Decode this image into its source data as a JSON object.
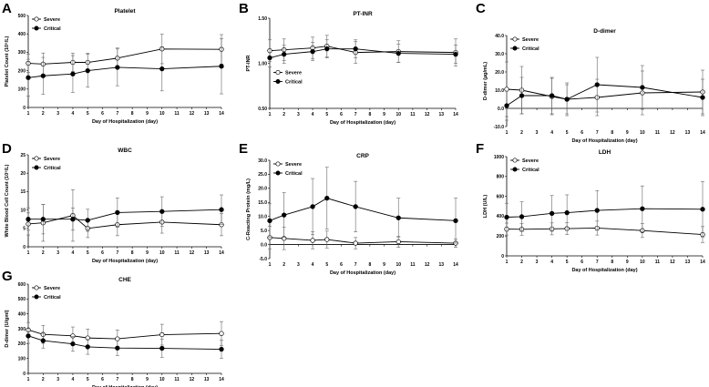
{
  "chart_data": [
    {
      "type": "line",
      "letter": "A",
      "title": "Platelet",
      "ylabel": "Platelet Count (10⁹/L)",
      "xlabel": "Day of Hospitalization (day)",
      "ylim": [
        0,
        500
      ],
      "yticks": [
        0,
        100,
        200,
        300,
        400,
        500
      ],
      "ytick_labels": [
        "0",
        "100",
        "200",
        "300",
        "400",
        "500"
      ],
      "xlim": [
        1,
        14
      ],
      "xticks": [
        1,
        2,
        3,
        4,
        5,
        6,
        7,
        8,
        9,
        10,
        11,
        12,
        13,
        14
      ],
      "xtick_labels": [
        "1",
        "2",
        "3",
        "4",
        "5",
        "6",
        "7",
        "8",
        "9",
        "10",
        "11",
        "12",
        "13",
        "14"
      ],
      "legend": "top-left",
      "series": [
        {
          "name": "Severe",
          "marker": "open",
          "x": [
            1,
            2,
            4,
            5,
            7,
            10,
            14
          ],
          "values": [
            240,
            236,
            245,
            245,
            268,
            318,
            316
          ],
          "err": [
            50,
            60,
            50,
            50,
            55,
            80,
            80
          ]
        },
        {
          "name": "Critical",
          "marker": "filled",
          "x": [
            1,
            2,
            4,
            5,
            7,
            10,
            14
          ],
          "values": [
            162,
            172,
            182,
            200,
            218,
            210,
            224
          ],
          "err": [
            100,
            100,
            100,
            90,
            100,
            120,
            150
          ]
        }
      ]
    },
    {
      "type": "line",
      "letter": "B",
      "title": "PT-INR",
      "ylabel": "PT-INR",
      "xlabel": "Day of Hospitalization (day)",
      "ylim": [
        0.5,
        1.5
      ],
      "yticks": [
        0.5,
        1.0,
        1.5
      ],
      "ytick_labels": [
        "0.50",
        "1.00",
        "1.50"
      ],
      "xlim": [
        1,
        14
      ],
      "xticks": [
        1,
        2,
        3,
        4,
        5,
        6,
        7,
        8,
        9,
        10,
        11,
        12,
        13,
        14
      ],
      "xtick_labels": [
        "1",
        "2",
        "3",
        "4",
        "5",
        "6",
        "7",
        "8",
        "9",
        "10",
        "11",
        "12",
        "13",
        "14"
      ],
      "legend": "middle-left",
      "series": [
        {
          "name": "Severe",
          "marker": "open",
          "x": [
            1,
            2,
            4,
            5,
            7,
            10,
            14
          ],
          "values": [
            1.14,
            1.15,
            1.17,
            1.19,
            1.12,
            1.13,
            1.12
          ],
          "err": [
            0.12,
            0.12,
            0.12,
            0.12,
            0.12,
            0.12,
            0.15
          ]
        },
        {
          "name": "Critical",
          "marker": "filled",
          "x": [
            1,
            2,
            4,
            5,
            7,
            10,
            14
          ],
          "values": [
            1.06,
            1.1,
            1.13,
            1.16,
            1.16,
            1.11,
            1.1
          ],
          "err": [
            0.1,
            0.1,
            0.1,
            0.1,
            0.1,
            0.1,
            0.1
          ]
        }
      ]
    },
    {
      "type": "line",
      "letter": "C",
      "title": "D-dimer",
      "ylabel": "D-dimer (µg/mL)",
      "xlabel": "Day of Hospitalization (day)",
      "ylim": [
        -10,
        40
      ],
      "yticks": [
        -10,
        0,
        10,
        20,
        30,
        40
      ],
      "ytick_labels": [
        "-10.0",
        "0.0",
        "10.0",
        "20.0",
        "30.0",
        "40.0"
      ],
      "xlim": [
        1,
        14
      ],
      "xticks": [
        1,
        2,
        3,
        4,
        5,
        6,
        7,
        8,
        9,
        10,
        11,
        12,
        13,
        14
      ],
      "xtick_labels": [
        "1",
        "2",
        "3",
        "4",
        "5",
        "6",
        "7",
        "8",
        "9",
        "10",
        "11",
        "12",
        "13",
        "14"
      ],
      "legend": "top-left",
      "series": [
        {
          "name": "Severe",
          "marker": "open",
          "x": [
            1,
            2,
            4,
            5,
            7,
            10,
            14
          ],
          "values": [
            10.5,
            10,
            6.5,
            5,
            6,
            8.5,
            9
          ],
          "err": [
            15,
            13,
            10,
            9,
            10,
            12,
            12
          ]
        },
        {
          "name": "Critical",
          "marker": "filled",
          "x": [
            1,
            2,
            4,
            5,
            7,
            10,
            14
          ],
          "values": [
            1.5,
            7,
            7,
            5,
            13,
            11.5,
            6
          ],
          "err": [
            8,
            10,
            10,
            8,
            15,
            12,
            10
          ]
        }
      ]
    },
    {
      "type": "line",
      "letter": "D",
      "title": "WBC",
      "ylabel": "White Blood Cell Count (10⁹/L)",
      "xlabel": "Day of Hospitalization (day)",
      "ylim": [
        0,
        25
      ],
      "yticks": [
        0,
        5,
        10,
        15,
        20,
        25
      ],
      "ytick_labels": [
        "0",
        "5",
        "10",
        "15",
        "20",
        "25"
      ],
      "xlim": [
        1,
        14
      ],
      "xticks": [
        1,
        2,
        3,
        4,
        5,
        6,
        7,
        8,
        9,
        10,
        11,
        12,
        13,
        14
      ],
      "xtick_labels": [
        "1",
        "2",
        "3",
        "4",
        "5",
        "6",
        "7",
        "8",
        "9",
        "10",
        "11",
        "12",
        "13",
        "14"
      ],
      "legend": "top-left",
      "series": [
        {
          "name": "Severe",
          "marker": "open",
          "x": [
            1,
            2,
            4,
            5,
            7,
            10,
            14
          ],
          "values": [
            6.2,
            6.5,
            8.5,
            5,
            6,
            6.7,
            6
          ],
          "err": [
            3,
            5,
            7,
            2.5,
            3,
            3,
            3
          ]
        },
        {
          "name": "Critical",
          "marker": "filled",
          "x": [
            1,
            2,
            4,
            5,
            7,
            10,
            14
          ],
          "values": [
            7.5,
            7.5,
            7.5,
            7.2,
            9.3,
            9.6,
            10.1
          ],
          "err": [
            3,
            4,
            3,
            3,
            4,
            4,
            4
          ]
        }
      ]
    },
    {
      "type": "line",
      "letter": "E",
      "title": "CRP",
      "ylabel": "C-Reacting Protein (mg/L)",
      "xlabel": "Day of Hospitalization (day)",
      "ylim": [
        -5,
        30
      ],
      "yticks": [
        -5,
        0,
        5,
        10,
        15,
        20,
        25,
        30
      ],
      "ytick_labels": [
        "-5.0",
        "0.0",
        "5.0",
        "10.0",
        "15.0",
        "20.0",
        "25.0",
        "30.0"
      ],
      "xlim": [
        1,
        14
      ],
      "xticks": [
        1,
        2,
        3,
        4,
        5,
        6,
        7,
        8,
        9,
        10,
        11,
        12,
        13,
        14
      ],
      "xtick_labels": [
        "1",
        "2",
        "3",
        "4",
        "5",
        "6",
        "7",
        "8",
        "9",
        "10",
        "11",
        "12",
        "13",
        "14"
      ],
      "legend": "top-left",
      "series": [
        {
          "name": "Severe",
          "marker": "open",
          "x": [
            1,
            2,
            4,
            5,
            7,
            10,
            14
          ],
          "values": [
            2.5,
            2.2,
            1.5,
            1.8,
            0.5,
            1,
            0.5
          ],
          "err": [
            4,
            4,
            3,
            3,
            2,
            2,
            1.5
          ]
        },
        {
          "name": "Critical",
          "marker": "filled",
          "x": [
            1,
            2,
            4,
            5,
            7,
            10,
            14
          ],
          "values": [
            8.5,
            10.5,
            13.5,
            16.5,
            13.5,
            9.5,
            8.5
          ],
          "err": [
            6,
            8,
            10,
            11,
            9,
            7,
            8
          ]
        }
      ]
    },
    {
      "type": "line",
      "letter": "F",
      "title": "LDH",
      "ylabel": "LDH (U/L)",
      "xlabel": "Day of Hospitalization (day)",
      "ylim": [
        0,
        1000
      ],
      "yticks": [
        0,
        200,
        400,
        600,
        800,
        1000
      ],
      "ytick_labels": [
        "0",
        "200",
        "400",
        "600",
        "800",
        "1000"
      ],
      "xlim": [
        1,
        14
      ],
      "xticks": [
        1,
        2,
        3,
        4,
        5,
        6,
        7,
        8,
        9,
        10,
        11,
        12,
        13,
        14
      ],
      "xtick_labels": [
        "1",
        "2",
        "3",
        "4",
        "5",
        "6",
        "7",
        "8",
        "9",
        "10",
        "11",
        "12",
        "13",
        "14"
      ],
      "legend": "top-left",
      "series": [
        {
          "name": "Severe",
          "marker": "open",
          "x": [
            1,
            2,
            4,
            5,
            7,
            10,
            14
          ],
          "values": [
            270,
            268,
            272,
            275,
            280,
            255,
            215
          ],
          "err": [
            60,
            60,
            60,
            60,
            70,
            70,
            80
          ]
        },
        {
          "name": "Critical",
          "marker": "filled",
          "x": [
            1,
            2,
            4,
            5,
            7,
            10,
            14
          ],
          "values": [
            390,
            395,
            428,
            435,
            458,
            475,
            470
          ],
          "err": [
            140,
            150,
            180,
            180,
            200,
            230,
            280
          ]
        }
      ]
    },
    {
      "type": "line",
      "letter": "G",
      "title": "CHE",
      "ylabel": "D-dimer (U/gml)",
      "xlabel": "Day of Hospitalization (day)",
      "ylim": [
        0,
        600
      ],
      "yticks": [
        0,
        100,
        200,
        300,
        400,
        500,
        600
      ],
      "ytick_labels": [
        "0",
        "100",
        "200",
        "300",
        "400",
        "500",
        "600"
      ],
      "xlim": [
        1,
        14
      ],
      "xticks": [
        1,
        2,
        3,
        4,
        5,
        6,
        7,
        8,
        9,
        10,
        11,
        12,
        13,
        14
      ],
      "xtick_labels": [
        "1",
        "2",
        "3",
        "4",
        "5",
        "6",
        "7",
        "8",
        "9",
        "10",
        "11",
        "12",
        "13",
        "14"
      ],
      "legend": "top-left",
      "series": [
        {
          "name": "Severe",
          "marker": "open",
          "x": [
            1,
            2,
            4,
            5,
            7,
            10,
            14
          ],
          "values": [
            292,
            262,
            252,
            238,
            232,
            260,
            268
          ],
          "err": [
            50,
            60,
            60,
            60,
            60,
            70,
            80
          ]
        },
        {
          "name": "Critical",
          "marker": "filled",
          "x": [
            1,
            2,
            4,
            5,
            7,
            10,
            14
          ],
          "values": [
            252,
            220,
            198,
            178,
            170,
            168,
            162
          ],
          "err": [
            50,
            50,
            50,
            50,
            50,
            60,
            60
          ]
        }
      ]
    }
  ]
}
